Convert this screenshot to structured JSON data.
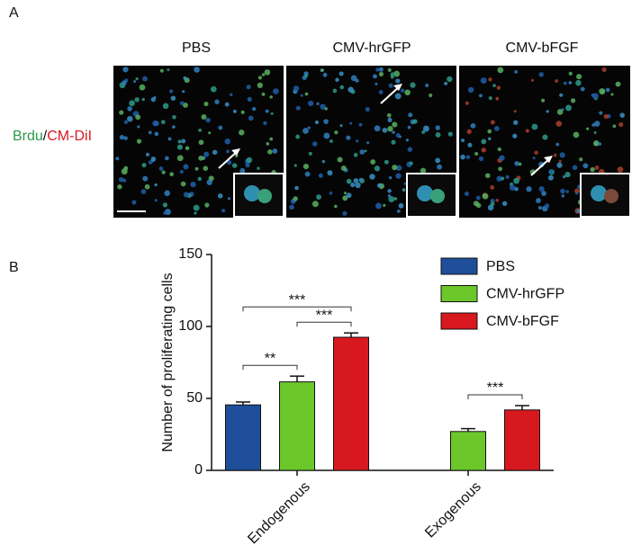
{
  "panel_a": {
    "label": "A",
    "columns": [
      "PBS",
      "CMV-hrGFP",
      "CMV-bFGF"
    ],
    "stain_green": "Brdu",
    "stain_sep": "/",
    "stain_red": "CM-DiI"
  },
  "chart_data": {
    "type": "bar",
    "panel_label": "B",
    "ylabel": "Number of proliferating cells",
    "categories": [
      "Endogenous",
      "Exogenous"
    ],
    "series": [
      {
        "name": "PBS",
        "color": "#1f4e9b",
        "values": [
          45.5,
          null
        ],
        "errors": [
          2,
          null
        ]
      },
      {
        "name": "CMV-hrGFP",
        "color": "#6cc72a",
        "values": [
          61.5,
          27
        ],
        "errors": [
          4,
          2
        ]
      },
      {
        "name": "CMV-bFGF",
        "color": "#d7191f",
        "values": [
          92.5,
          42
        ],
        "errors": [
          3,
          3
        ]
      }
    ],
    "ylim": [
      0,
      150
    ],
    "yticks": [
      0,
      50,
      100,
      150
    ],
    "annotations": [
      {
        "text": "**",
        "category": "Endogenous",
        "pair": [
          "PBS",
          "CMV-hrGFP"
        ]
      },
      {
        "text": "***",
        "category": "Endogenous",
        "pair": [
          "PBS",
          "CMV-bFGF"
        ]
      },
      {
        "text": "***",
        "category": "Endogenous",
        "pair": [
          "CMV-hrGFP",
          "CMV-bFGF"
        ]
      },
      {
        "text": "***",
        "category": "Exogenous",
        "pair": [
          "CMV-hrGFP",
          "CMV-bFGF"
        ]
      }
    ]
  }
}
